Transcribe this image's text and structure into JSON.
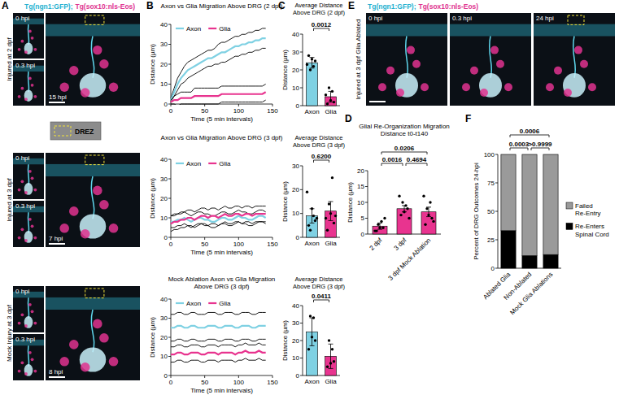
{
  "chart_data": [
    {
      "type": "image",
      "panel": "A",
      "header": [
        "Tg(ngn1:GFP);",
        "Tg(sox10:nls-Eos)"
      ],
      "header_colors": [
        "#23b0d0",
        "#e0338f"
      ],
      "row_label": "Injured at 2 dpf",
      "frames": [
        "0 hpi",
        "0.3 hpi",
        "15 hpi"
      ]
    },
    {
      "type": "key",
      "label": "DREZ"
    },
    {
      "type": "image",
      "row_label": "Injured at 3 dpf",
      "frames": [
        "0 hpi",
        "0.3 hpi",
        "7 hpi"
      ]
    },
    {
      "type": "image",
      "row_label": "Mock Injury at 3 dpf",
      "frames": [
        "0 hpi",
        "0.3 hpi",
        "8 hpi"
      ]
    },
    {
      "type": "line",
      "panel": "B",
      "title": "Axon vs Glia Migration Above DRG (2 dpf)",
      "x_label": "Time (5 min intervals)",
      "y_label": "Distance (µm)",
      "legend": "upper left",
      "x": [
        0,
        5,
        10,
        15,
        20,
        25,
        30,
        35,
        40,
        45,
        50,
        55,
        60,
        65,
        70,
        75,
        80,
        85,
        90,
        95,
        100,
        105,
        110,
        115,
        120,
        125,
        130,
        135,
        140
      ],
      "xlim": [
        0,
        150
      ],
      "xticks": [
        0,
        50,
        100,
        150
      ],
      "ylim": [
        0,
        40
      ],
      "yticks": [
        0,
        10,
        20,
        30,
        40
      ],
      "series": [
        {
          "name": "Axon",
          "color": "#7fd1e3",
          "values": [
            2,
            6,
            10,
            13,
            15,
            17,
            18,
            19,
            20,
            21,
            22,
            23,
            23,
            24,
            25,
            26,
            26,
            27,
            28,
            29,
            29,
            30,
            30,
            31,
            31,
            32,
            32,
            33,
            33
          ],
          "error": [
            1,
            2,
            3,
            3,
            4,
            4,
            4,
            4,
            4,
            4,
            4,
            4,
            4,
            4,
            5,
            5,
            5,
            5,
            5,
            5,
            5,
            5,
            5,
            5,
            5,
            5,
            5,
            5,
            5
          ]
        },
        {
          "name": "Glia",
          "color": "#e8348f",
          "values": [
            1,
            2,
            2,
            3,
            3,
            3,
            3,
            4,
            4,
            4,
            4,
            4,
            4,
            4,
            4,
            5,
            5,
            5,
            5,
            5,
            5,
            5,
            5,
            5,
            5,
            5,
            5,
            5,
            6
          ],
          "error": [
            1,
            2,
            3,
            3,
            3,
            3,
            3,
            4,
            4,
            4,
            4,
            4,
            4,
            4,
            4,
            4,
            4,
            4,
            4,
            4,
            4,
            4,
            4,
            4,
            4,
            4,
            4,
            4,
            4
          ]
        }
      ]
    },
    {
      "type": "line",
      "title": "Axon vs Glia Migration Above DRG (3 dpf)",
      "x_label": "Time (5 min intervals)",
      "y_label": "Distance (µm)",
      "legend": "upper left",
      "x": [
        0,
        5,
        10,
        15,
        20,
        25,
        30,
        35,
        40,
        45,
        50,
        55,
        60,
        65,
        70,
        75,
        80,
        85,
        90,
        95,
        100,
        105,
        110,
        115,
        120,
        125,
        130,
        135,
        140
      ],
      "xlim": [
        0,
        150
      ],
      "xticks": [
        0,
        50,
        100,
        150
      ],
      "ylim": [
        0,
        40
      ],
      "yticks": [
        0,
        10,
        20,
        30,
        40
      ],
      "series": [
        {
          "name": "Axon",
          "color": "#7fd1e3",
          "values": [
            8,
            8,
            9,
            9,
            10,
            9,
            8,
            9,
            10,
            10,
            9,
            9,
            8,
            8,
            9,
            10,
            10,
            9,
            9,
            10,
            11,
            10,
            10,
            9,
            9,
            10,
            11,
            11,
            10
          ],
          "error": [
            3,
            3,
            3,
            3,
            3,
            3,
            3,
            3,
            3,
            3,
            3,
            3,
            3,
            3,
            3,
            3,
            3,
            3,
            3,
            3,
            3,
            3,
            3,
            3,
            3,
            3,
            3,
            3,
            3
          ]
        },
        {
          "name": "Glia",
          "color": "#e8348f",
          "values": [
            7,
            8,
            8,
            9,
            9,
            10,
            10,
            9,
            10,
            11,
            11,
            10,
            11,
            11,
            10,
            11,
            12,
            11,
            11,
            12,
            12,
            11,
            12,
            12,
            11,
            12,
            12,
            12,
            12
          ],
          "error": [
            4,
            4,
            4,
            4,
            4,
            4,
            4,
            4,
            4,
            4,
            4,
            4,
            4,
            4,
            4,
            4,
            4,
            4,
            4,
            4,
            4,
            4,
            4,
            4,
            4,
            4,
            4,
            4,
            4
          ]
        }
      ]
    },
    {
      "type": "line",
      "title": "Mock Ablation Axon vs Glia Migration Above DRG (3 dpf)",
      "x_label": "Time (5 min intervals)",
      "y_label": "Distance (µm)",
      "legend": "upper left",
      "x": [
        0,
        5,
        10,
        15,
        20,
        25,
        30,
        35,
        40,
        45,
        50,
        55,
        60,
        65,
        70,
        75,
        80,
        85,
        90,
        95,
        100,
        105,
        110,
        115,
        120,
        125,
        130,
        135,
        140
      ],
      "xlim": [
        0,
        150
      ],
      "xticks": [
        0,
        50,
        100,
        150
      ],
      "ylim": [
        0,
        40
      ],
      "yticks": [
        0,
        10,
        20,
        30,
        40
      ],
      "series": [
        {
          "name": "Axon",
          "color": "#7fd1e3",
          "values": [
            25,
            25,
            26,
            26,
            25,
            25,
            26,
            26,
            25,
            25,
            25,
            26,
            26,
            26,
            25,
            25,
            26,
            26,
            26,
            25,
            25,
            26,
            26,
            26,
            25,
            25,
            26,
            26,
            26
          ],
          "error": [
            7,
            7,
            7,
            7,
            7,
            7,
            7,
            7,
            7,
            7,
            7,
            7,
            7,
            7,
            7,
            7,
            7,
            7,
            7,
            7,
            7,
            7,
            7,
            7,
            7,
            7,
            7,
            7,
            7
          ]
        },
        {
          "name": "Glia",
          "color": "#e8348f",
          "values": [
            11,
            11,
            12,
            12,
            11,
            11,
            12,
            12,
            12,
            11,
            11,
            12,
            12,
            12,
            11,
            12,
            12,
            12,
            12,
            11,
            12,
            12,
            13,
            12,
            12,
            12,
            13,
            12,
            12
          ],
          "error": [
            4,
            4,
            4,
            4,
            4,
            4,
            4,
            4,
            4,
            4,
            4,
            4,
            4,
            4,
            4,
            4,
            4,
            4,
            4,
            4,
            4,
            4,
            4,
            4,
            4,
            4,
            4,
            4,
            4
          ]
        }
      ]
    },
    {
      "type": "bar",
      "panel": "C",
      "title": "Average Distance Above DRG (2 dpf)",
      "y_label": "Distance (µm)",
      "categories": [
        "Axon",
        "Glia"
      ],
      "values": [
        24,
        5
      ],
      "error": [
        3,
        3
      ],
      "colors": [
        "#7fd1e3",
        "#e8348f"
      ],
      "points": [
        [
          28,
          25,
          20,
          22,
          26,
          23
        ],
        [
          1,
          2,
          10,
          8,
          3,
          6
        ]
      ],
      "ylim": [
        0,
        40
      ],
      "yticks": [
        0,
        10,
        20,
        30,
        40
      ],
      "comparisons": [
        {
          "between": [
            "Axon",
            "Glia"
          ],
          "label": "0.0012"
        }
      ]
    },
    {
      "type": "bar",
      "title": "Average Distance Above DRG (3 dpf)",
      "y_label": "Distance (µm)",
      "categories": [
        "Axon",
        "Glia"
      ],
      "values": [
        9,
        11
      ],
      "error": [
        3,
        4
      ],
      "colors": [
        "#7fd1e3",
        "#e8348f"
      ],
      "points": [
        [
          5,
          7,
          3,
          9,
          12,
          19,
          8
        ],
        [
          3,
          6,
          14,
          25,
          10,
          8,
          9
        ]
      ],
      "ylim": [
        0,
        30
      ],
      "yticks": [
        0,
        10,
        20,
        30
      ],
      "comparisons": [
        {
          "between": [
            "Axon",
            "Glia"
          ],
          "label": "0.6200"
        }
      ]
    },
    {
      "type": "bar",
      "title": "Average Distance Above DRG (3 dpf)",
      "y_label": "Distance (µm)",
      "categories": [
        "Axon",
        "Glia"
      ],
      "values": [
        25,
        11
      ],
      "error": [
        8,
        7
      ],
      "colors": [
        "#7fd1e3",
        "#e8348f"
      ],
      "points": [
        [
          15,
          20,
          34,
          33,
          22
        ],
        [
          5,
          8,
          20,
          15,
          7
        ]
      ],
      "ylim": [
        0,
        40
      ],
      "yticks": [
        0,
        10,
        20,
        30,
        40
      ],
      "comparisons": [
        {
          "between": [
            "Axon",
            "Glia"
          ],
          "label": "0.0411"
        }
      ]
    },
    {
      "type": "bar",
      "panel": "D",
      "title": "Glial Re-Organization Migration Distance t0-t140",
      "y_label": "Distance (µm)",
      "categories": [
        "2 dpf",
        "3 dpf",
        "3 dpf Mock Ablation"
      ],
      "values": [
        2.5,
        8,
        7
      ],
      "error": [
        1,
        1,
        1.5
      ],
      "colors": [
        "#e8348f",
        "#e8348f",
        "#e8348f"
      ],
      "points": [
        [
          1,
          2,
          3,
          4,
          2,
          1,
          5
        ],
        [
          6,
          8,
          10,
          9,
          7,
          12,
          5
        ],
        [
          3,
          5,
          8,
          10,
          6,
          12,
          4
        ]
      ],
      "ylim": [
        0,
        20
      ],
      "yticks": [
        0,
        5,
        10,
        15,
        20
      ],
      "comparisons": [
        {
          "between": [
            "2 dpf",
            "3 dpf"
          ],
          "label": "0.0016"
        },
        {
          "between": [
            "3 dpf",
            "3 dpf Mock Ablation"
          ],
          "label": "0.4694"
        },
        {
          "between": [
            "2 dpf",
            "3 dpf Mock Ablation"
          ],
          "label": "0.0206"
        }
      ]
    },
    {
      "type": "image",
      "panel": "E",
      "header": [
        "Tg(ngn1:GFP);",
        "Tg(sox10:nls-Eos)"
      ],
      "header_colors": [
        "#23b0d0",
        "#e0338f"
      ],
      "row_label": "Injured at 3 dpf Glia Ablated",
      "frames": [
        "0 hpi",
        "0.3 hpi",
        "24 hpi"
      ]
    },
    {
      "type": "bar",
      "panel": "F",
      "stacked": true,
      "legend": "right",
      "y_label": "Percent of DRG Outcomes 24-hpi",
      "categories": [
        "Ablated Glia",
        "Non-Ablated",
        "Mock Glia Ablations"
      ],
      "series": [
        {
          "name": "Re-Enters Spinal Cord",
          "color": "#000000",
          "values": [
            33,
            11,
            12
          ]
        },
        {
          "name": "Failed Re-Entry",
          "color": "#9a9a9a",
          "values": [
            67,
            89,
            88
          ]
        }
      ],
      "ylim": [
        0,
        100
      ],
      "yticks": [
        0,
        25,
        50,
        75,
        100
      ],
      "comparisons": [
        {
          "between": [
            "Ablated Glia",
            "Non-Ablated"
          ],
          "label": "0.0003"
        },
        {
          "between": [
            "Non-Ablated",
            "Mock Glia Ablations"
          ],
          "label": ">0.9999"
        },
        {
          "between": [
            "Ablated Glia",
            "Mock Glia Ablations"
          ],
          "label": "0.0006"
        }
      ]
    }
  ]
}
